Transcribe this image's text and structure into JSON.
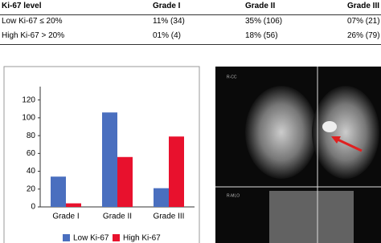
{
  "table": {
    "header": [
      "Ki-67 level",
      "Grade I",
      "Grade II",
      "Grade III"
    ],
    "rows": [
      [
        "Low Ki-67 ≤ 20%",
        "11% (34)",
        "35% (106)",
        "07% (21)"
      ],
      [
        "High Ki-67 > 20%",
        "01% (4)",
        "18% (56)",
        "26% (79)"
      ]
    ]
  },
  "chart_data": {
    "type": "bar",
    "categories": [
      "Grade I",
      "Grade II",
      "Grade III"
    ],
    "series": [
      {
        "name": "Low Ki-67",
        "color": "#4a6fbf",
        "values": [
          34,
          106,
          21
        ]
      },
      {
        "name": "High Ki-67",
        "color": "#e8112d",
        "values": [
          4,
          56,
          79
        ]
      }
    ],
    "ylim": [
      0,
      135
    ],
    "yticks": [
      0,
      20,
      40,
      60,
      80,
      100,
      120
    ],
    "grid": false,
    "legend": "bottom"
  },
  "image": {
    "labels": [
      "R-CC",
      "R-MLO"
    ]
  }
}
